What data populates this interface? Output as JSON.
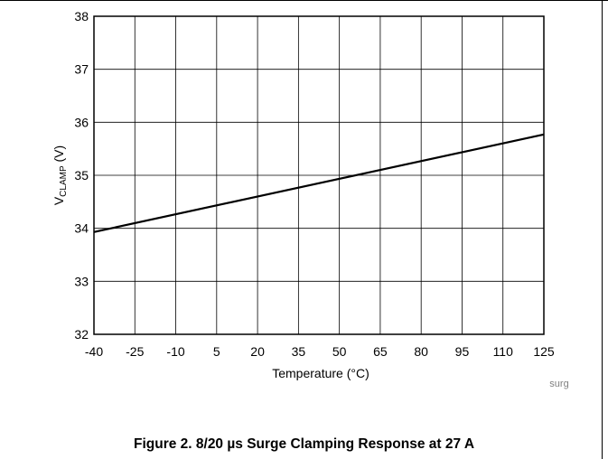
{
  "figure": {
    "caption": "Figure 2. 8/20 µs Surge Clamping Response at 27 A",
    "source_tag": "surg"
  },
  "chart_data": {
    "type": "line",
    "xlabel": "Temperature (°C)",
    "ylabel_main": "V",
    "ylabel_sub": "CLAMP",
    "ylabel_unit": " (V)",
    "x_ticks": [
      -40,
      -25,
      -10,
      5,
      20,
      35,
      50,
      65,
      80,
      95,
      110,
      125
    ],
    "y_ticks": [
      32,
      33,
      34,
      35,
      36,
      37,
      38
    ],
    "xlim": [
      -40,
      125
    ],
    "ylim": [
      32,
      38
    ],
    "grid": true,
    "series": [
      {
        "x": [
          -40,
          125
        ],
        "y": [
          33.93,
          35.77
        ],
        "color": "#000000"
      }
    ]
  }
}
